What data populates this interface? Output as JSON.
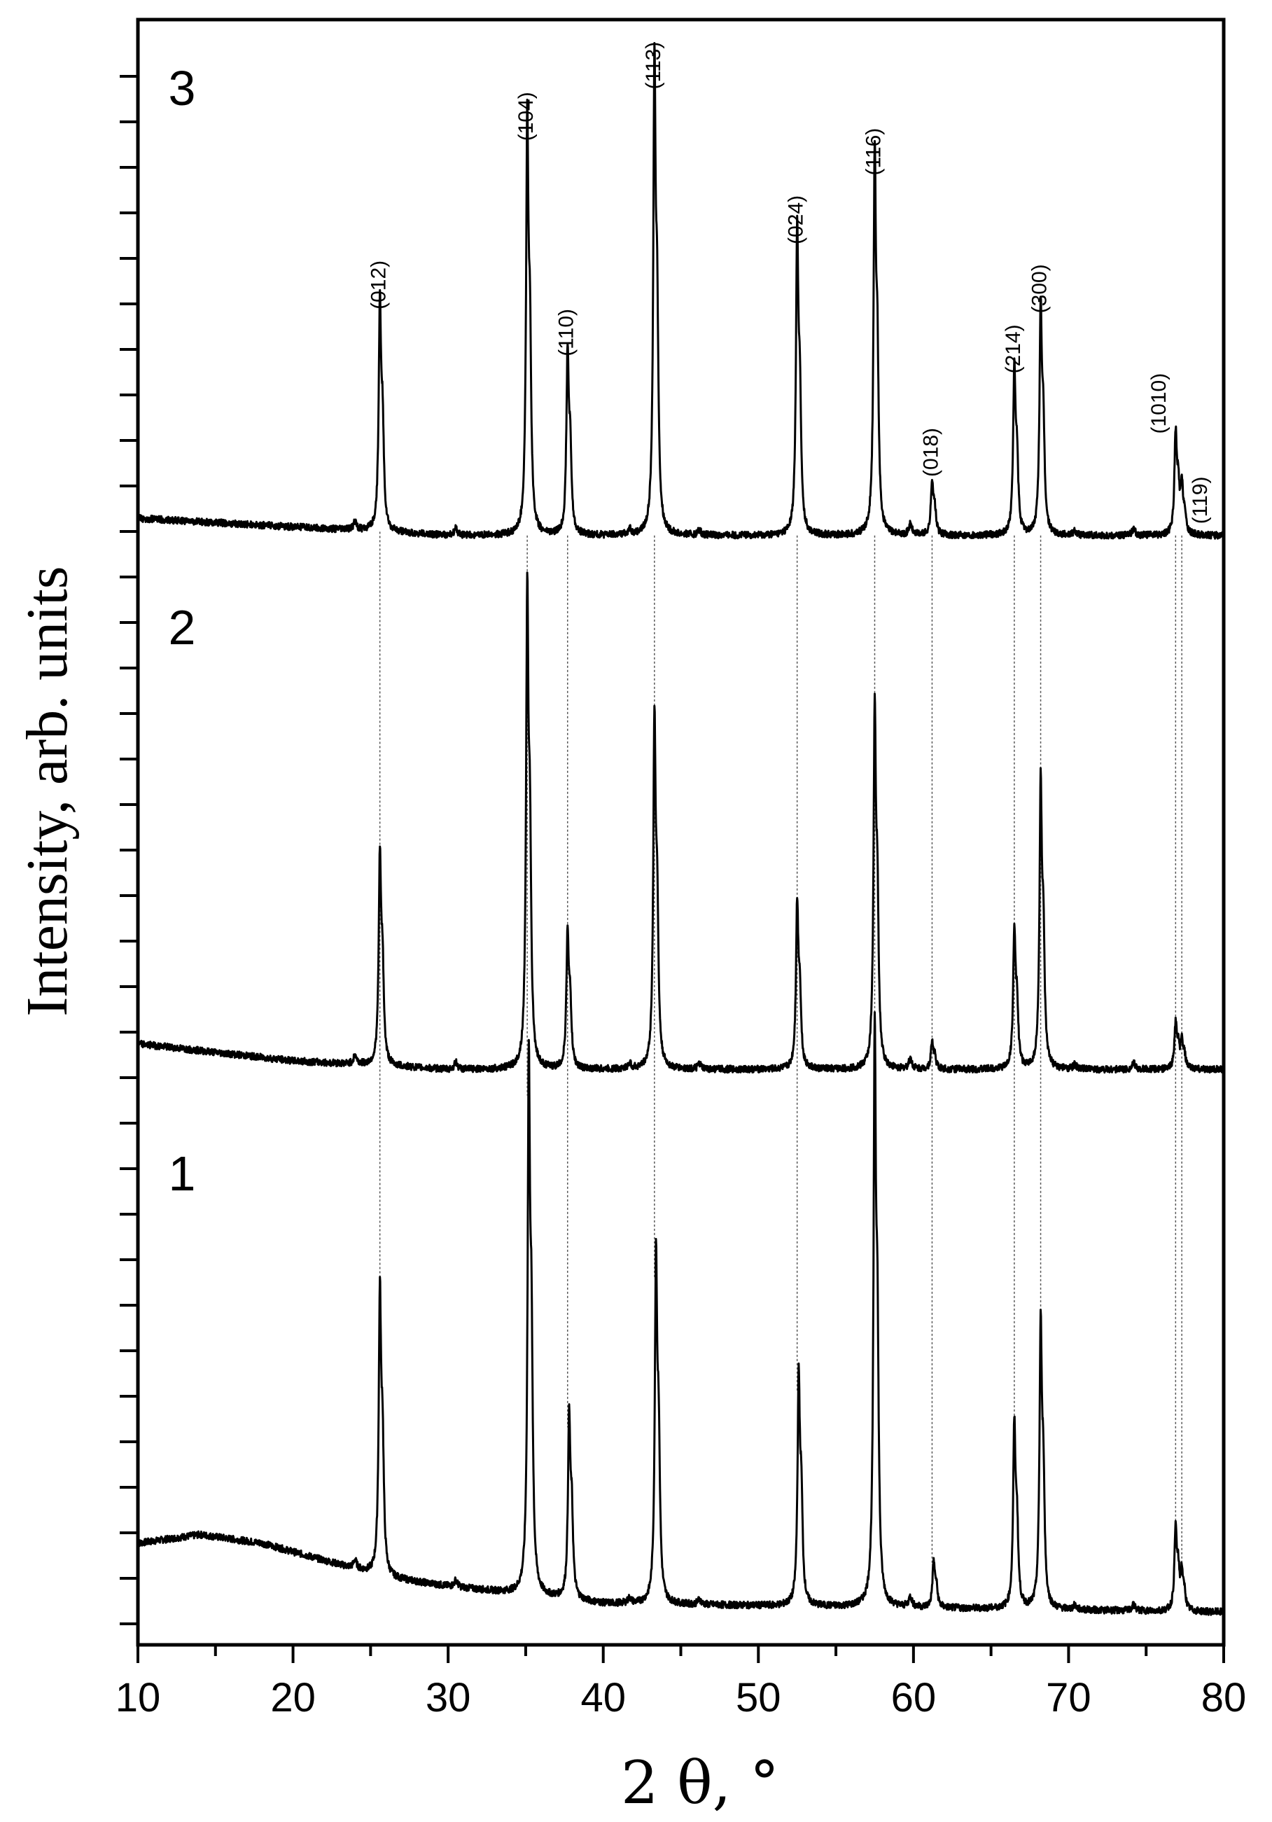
{
  "chart_data": {
    "type": "line",
    "xlabel": "2 θ, °",
    "ylabel": "Intensity, arb. units",
    "xlim": [
      10,
      80
    ],
    "x_ticks": [
      "10",
      "20",
      "30",
      "40",
      "50",
      "60",
      "70",
      "80"
    ],
    "y_ticks_shown": false,
    "grid": false,
    "legend": "none; curves labeled inline by number",
    "series": [
      {
        "name": "1",
        "baseline": 0.0,
        "background": [
          [
            10,
            0.07
          ],
          [
            14,
            0.08
          ],
          [
            18,
            0.07
          ],
          [
            22,
            0.05
          ],
          [
            26,
            0.03
          ],
          [
            30,
            0.02
          ],
          [
            40,
            0.0
          ],
          [
            80,
            -0.01
          ]
        ],
        "peaks": [
          {
            "two_theta": 25.6,
            "height": 0.31
          },
          {
            "two_theta": 35.2,
            "height": 0.58
          },
          {
            "two_theta": 37.8,
            "height": 0.2
          },
          {
            "two_theta": 43.4,
            "height": 0.38
          },
          {
            "two_theta": 52.6,
            "height": 0.25
          },
          {
            "two_theta": 57.5,
            "height": 0.62
          },
          {
            "two_theta": 61.3,
            "height": 0.05
          },
          {
            "two_theta": 66.5,
            "height": 0.2
          },
          {
            "two_theta": 68.2,
            "height": 0.31
          },
          {
            "two_theta": 76.9,
            "height": 0.09
          },
          {
            "two_theta": 77.3,
            "height": 0.04
          }
        ]
      },
      {
        "name": "2",
        "baseline": 0.62,
        "background": [
          [
            10,
            0.03
          ],
          [
            15,
            0.02
          ],
          [
            20,
            0.01
          ],
          [
            25,
            0.005
          ],
          [
            30,
            0.0
          ],
          [
            80,
            0.0
          ]
        ],
        "peaks": [
          {
            "two_theta": 25.6,
            "height": 0.23
          },
          {
            "two_theta": 35.1,
            "height": 0.52
          },
          {
            "two_theta": 37.7,
            "height": 0.15
          },
          {
            "two_theta": 43.3,
            "height": 0.38
          },
          {
            "two_theta": 52.5,
            "height": 0.18
          },
          {
            "two_theta": 57.5,
            "height": 0.39
          },
          {
            "two_theta": 61.2,
            "height": 0.03
          },
          {
            "two_theta": 66.5,
            "height": 0.15
          },
          {
            "two_theta": 68.2,
            "height": 0.31
          },
          {
            "two_theta": 76.9,
            "height": 0.05
          },
          {
            "two_theta": 77.3,
            "height": 0.03
          }
        ]
      },
      {
        "name": "3",
        "baseline": 1.24,
        "background": [
          [
            10,
            0.02
          ],
          [
            15,
            0.015
          ],
          [
            20,
            0.01
          ],
          [
            25,
            0.005
          ],
          [
            30,
            0.0
          ],
          [
            80,
            0.0
          ]
        ],
        "peaks": [
          {
            "two_theta": 25.6,
            "height": 0.25
          },
          {
            "two_theta": 35.1,
            "height": 0.45
          },
          {
            "two_theta": 37.7,
            "height": 0.2
          },
          {
            "two_theta": 43.3,
            "height": 0.51
          },
          {
            "two_theta": 52.5,
            "height": 0.33
          },
          {
            "two_theta": 57.5,
            "height": 0.41
          },
          {
            "two_theta": 61.2,
            "height": 0.06
          },
          {
            "two_theta": 66.5,
            "height": 0.18
          },
          {
            "two_theta": 68.2,
            "height": 0.25
          },
          {
            "two_theta": 76.9,
            "height": 0.11
          },
          {
            "two_theta": 77.3,
            "height": 0.05
          }
        ]
      }
    ],
    "annotations": [
      {
        "text": "(012)",
        "two_theta": 25.6
      },
      {
        "text": "(104)",
        "two_theta": 35.1
      },
      {
        "text": "(110)",
        "two_theta": 37.7
      },
      {
        "text": "(113)",
        "two_theta": 43.3
      },
      {
        "text": "(024)",
        "two_theta": 52.5
      },
      {
        "text": "(116)",
        "two_theta": 57.5
      },
      {
        "text": "(018)",
        "two_theta": 61.2
      },
      {
        "text": "(214)",
        "two_theta": 66.5
      },
      {
        "text": "(300)",
        "two_theta": 68.2
      },
      {
        "text": "(1010)",
        "two_theta": 76.9
      },
      {
        "text": "(119)",
        "two_theta": 77.3
      }
    ],
    "colors": {
      "line": "#000000",
      "guide": "#555555",
      "frame": "#000000"
    }
  }
}
